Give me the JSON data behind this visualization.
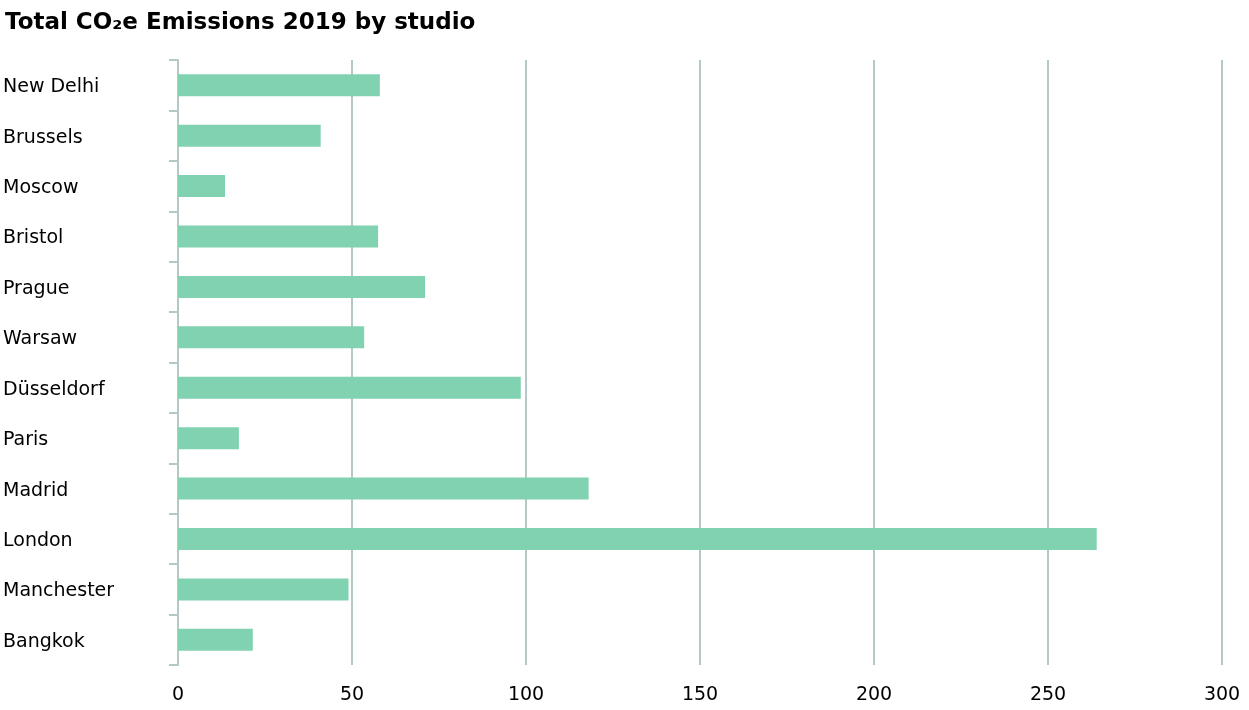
{
  "chart_data": {
    "type": "bar",
    "orientation": "horizontal",
    "title": "Total CO₂e Emissions 2019 by studio",
    "categories": [
      "New Delhi",
      "Brussels",
      "Moscow",
      "Bristol",
      "Prague",
      "Warsaw",
      "Düsseldorf",
      "Paris",
      "Madrid",
      "London",
      "Manchester",
      "Bangkok"
    ],
    "values": [
      58,
      41,
      13.5,
      57.5,
      71,
      53.5,
      98.5,
      17.5,
      118,
      264,
      49,
      21.5
    ],
    "color": "#80d2b0",
    "xlim": [
      0,
      300
    ],
    "xticks": [
      0,
      50,
      100,
      150,
      200,
      250,
      300
    ],
    "grid": "x"
  }
}
